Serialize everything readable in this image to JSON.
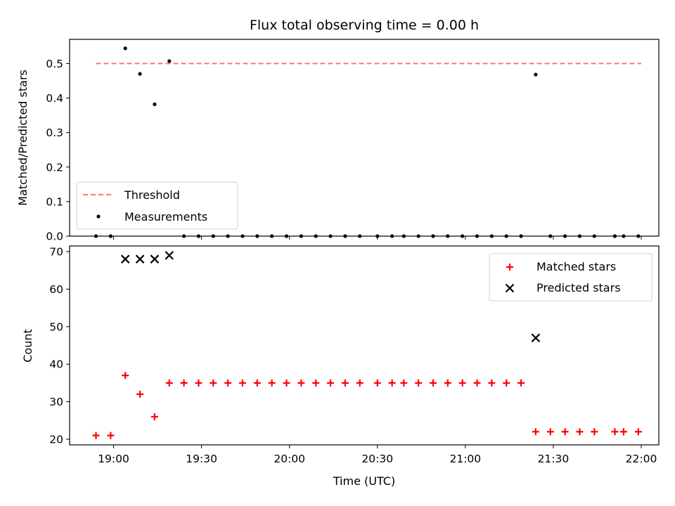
{
  "chart_data": [
    {
      "type": "scatter",
      "title": "Flux total observing time = 0.00 h",
      "xlabel": "",
      "ylabel": "Matched/Predicted stars",
      "ylim": [
        0,
        0.57
      ],
      "xlim": [
        "18:45",
        "22:06"
      ],
      "yticks": [
        "0.0",
        "0.1",
        "0.2",
        "0.3",
        "0.4",
        "0.5"
      ],
      "grid": false,
      "legend_position": "lower-left",
      "threshold": {
        "name": "Threshold",
        "value": 0.5,
        "x_range": [
          "18:54",
          "22:00"
        ],
        "color": "#ff7070"
      },
      "series": [
        {
          "name": "Measurements",
          "color": "#000000",
          "x": [
            "18:54",
            "18:59",
            "19:04",
            "19:09",
            "19:14",
            "19:19",
            "19:24",
            "19:29",
            "19:34",
            "19:39",
            "19:44",
            "19:49",
            "19:54",
            "19:59",
            "20:04",
            "20:09",
            "20:14",
            "20:19",
            "20:24",
            "20:30",
            "20:35",
            "20:39",
            "20:44",
            "20:49",
            "20:54",
            "20:59",
            "21:04",
            "21:09",
            "21:14",
            "21:19",
            "21:24",
            "21:29",
            "21:34",
            "21:39",
            "21:44",
            "21:51",
            "21:54",
            "21:59"
          ],
          "y": [
            0,
            0,
            0.544,
            0.47,
            0.382,
            0.507,
            0,
            0,
            0,
            0,
            0,
            0,
            0,
            0,
            0,
            0,
            0,
            0,
            0,
            0,
            0,
            0,
            0,
            0,
            0,
            0,
            0,
            0,
            0,
            0,
            0.468,
            0,
            0,
            0,
            0,
            0,
            0,
            0
          ]
        }
      ]
    },
    {
      "type": "scatter",
      "title": "",
      "xlabel": "Time (UTC)",
      "ylabel": "Count",
      "ylim": [
        18.5,
        71.5
      ],
      "xlim": [
        "18:45",
        "22:06"
      ],
      "yticks": [
        "20",
        "30",
        "40",
        "50",
        "60",
        "70"
      ],
      "xticks": [
        "19:00",
        "19:30",
        "20:00",
        "20:30",
        "21:00",
        "21:30",
        "22:00"
      ],
      "grid": false,
      "legend_position": "top-right",
      "series": [
        {
          "name": "Matched stars",
          "marker": "plus",
          "color": "#ff0000",
          "x": [
            "18:54",
            "18:59",
            "19:04",
            "19:09",
            "19:14",
            "19:19",
            "19:24",
            "19:29",
            "19:34",
            "19:39",
            "19:44",
            "19:49",
            "19:54",
            "19:59",
            "20:04",
            "20:09",
            "20:14",
            "20:19",
            "20:24",
            "20:30",
            "20:35",
            "20:39",
            "20:44",
            "20:49",
            "20:54",
            "20:59",
            "21:04",
            "21:09",
            "21:14",
            "21:19",
            "21:24",
            "21:29",
            "21:34",
            "21:39",
            "21:44",
            "21:51",
            "21:54",
            "21:59"
          ],
          "y": [
            21,
            21,
            37,
            32,
            26,
            35,
            35,
            35,
            35,
            35,
            35,
            35,
            35,
            35,
            35,
            35,
            35,
            35,
            35,
            35,
            35,
            35,
            35,
            35,
            35,
            35,
            35,
            35,
            35,
            35,
            22,
            22,
            22,
            22,
            22,
            22,
            22,
            22
          ]
        },
        {
          "name": "Predicted stars",
          "marker": "x",
          "color": "#000000",
          "x": [
            "19:04",
            "19:09",
            "19:14",
            "19:19",
            "21:24"
          ],
          "y": [
            68,
            68,
            68,
            69,
            47
          ]
        }
      ]
    }
  ]
}
